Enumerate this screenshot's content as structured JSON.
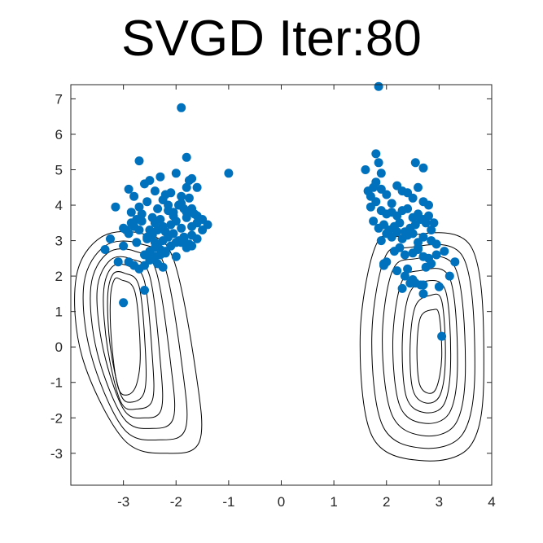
{
  "chart_data": {
    "type": "scatter",
    "title": "SVGD Iter:80",
    "xlabel": "",
    "ylabel": "",
    "xlim": [
      -4,
      4
    ],
    "ylim": [
      -3.9,
      7.4
    ],
    "xticks": [
      -3,
      -2,
      -1,
      0,
      1,
      2,
      3,
      4
    ],
    "yticks": [
      -3,
      -2,
      -1,
      0,
      1,
      2,
      3,
      4,
      5,
      6,
      7
    ],
    "grid": false,
    "legend": "none",
    "point_color": "#0072BD",
    "contour_color": "#000000",
    "series": [
      {
        "x": [
          -1.9,
          -1.0,
          1.85,
          -3.25,
          -3.15,
          -3.1,
          -2.6,
          -3.0,
          -2.7,
          -2.5,
          -2.3,
          -2.1,
          -1.8,
          -1.6,
          -1.4,
          -2.9,
          -2.8,
          -2.6,
          -2.4,
          -2.2,
          -2.0,
          -1.9,
          -1.7,
          -1.5,
          -3.0,
          -2.85,
          -2.7,
          -2.55,
          -2.45,
          -2.35,
          -2.25,
          -2.15,
          -2.05,
          -1.95,
          -1.85,
          -1.75,
          -1.65,
          -2.9,
          -2.8,
          -2.65,
          -2.5,
          -2.4,
          -2.3,
          -2.2,
          -2.1,
          -2.0,
          -1.9,
          -1.8,
          -1.7,
          -1.6,
          -3.35,
          -3.0,
          -2.75,
          -2.55,
          -2.45,
          -2.35,
          -2.25,
          -2.15,
          -2.05,
          -1.95,
          -1.85,
          -1.75,
          -2.6,
          -2.5,
          -2.4,
          -2.3,
          -2.2,
          -2.1,
          -2.0,
          -1.9,
          -1.8,
          -2.45,
          -2.35,
          -2.25,
          -2.55,
          -2.45,
          -2.35,
          -2.25,
          -1.75,
          -1.8,
          -1.9,
          -2.15,
          -2.05,
          -2.65,
          -2.75,
          -2.85,
          -2.95,
          -1.7,
          -1.85,
          -2.0,
          -2.1,
          -2.2,
          -2.3,
          -2.4,
          -2.5,
          -2.6,
          -2.7,
          -2.8,
          -2.9,
          -1.8,
          -1.7,
          -1.6,
          -1.5,
          -1.6,
          -1.7,
          -2.7,
          -2.4,
          -2.5,
          1.8,
          1.85,
          1.6,
          1.9,
          2.55,
          2.7,
          1.95,
          1.65,
          1.7,
          1.75,
          1.8,
          1.9,
          2.0,
          2.1,
          2.2,
          2.3,
          2.4,
          2.5,
          2.6,
          2.7,
          2.8,
          1.7,
          1.8,
          1.9,
          2.0,
          2.1,
          2.2,
          2.3,
          2.4,
          2.5,
          2.6,
          2.7,
          2.8,
          2.9,
          1.75,
          1.85,
          1.95,
          2.05,
          2.15,
          2.25,
          2.35,
          2.45,
          2.55,
          2.65,
          2.75,
          2.85,
          1.9,
          2.0,
          2.1,
          2.2,
          2.3,
          2.4,
          2.5,
          2.6,
          2.7,
          2.85,
          2.95,
          2.15,
          2.25,
          2.35,
          2.5,
          2.6,
          2.7,
          2.8,
          2.95,
          3.1,
          3.2,
          3.3,
          2.4,
          2.55,
          2.7,
          2.85,
          2.35,
          2.5,
          2.65,
          2.3,
          2.7,
          3.0,
          3.05,
          2.0,
          1.95,
          2.2,
          2.6,
          2.45,
          2.75
        ],
        "y": [
          6.75,
          4.9,
          7.35,
          3.05,
          3.95,
          2.4,
          1.6,
          1.25,
          5.25,
          4.7,
          4.8,
          4.35,
          5.35,
          4.5,
          3.45,
          4.45,
          4.25,
          4.6,
          4.4,
          4.3,
          4.9,
          4.05,
          4.75,
          3.6,
          3.35,
          3.8,
          3.95,
          4.1,
          3.65,
          3.9,
          4.15,
          3.85,
          3.7,
          4.0,
          3.9,
          4.2,
          3.75,
          3.2,
          3.4,
          3.55,
          3.3,
          3.5,
          3.6,
          3.25,
          3.45,
          3.55,
          3.35,
          3.65,
          3.4,
          3.5,
          2.75,
          2.85,
          2.95,
          3.05,
          3.15,
          2.9,
          3.0,
          3.1,
          3.2,
          3.0,
          3.1,
          2.9,
          2.6,
          2.7,
          2.8,
          2.75,
          2.65,
          2.85,
          2.55,
          2.95,
          2.8,
          2.5,
          2.35,
          2.25,
          3.1,
          3.2,
          3.3,
          3.4,
          4.7,
          4.5,
          4.25,
          4.0,
          3.8,
          3.75,
          3.6,
          3.5,
          3.3,
          3.15,
          3.05,
          2.95,
          2.85,
          2.7,
          2.6,
          2.55,
          2.45,
          2.3,
          2.2,
          2.3,
          2.4,
          3.8,
          3.9,
          3.7,
          3.3,
          3.05,
          2.85,
          3.3,
          2.95,
          3.15,
          5.45,
          5.2,
          5.0,
          4.9,
          5.2,
          5.05,
          2.3,
          4.4,
          4.25,
          4.5,
          4.65,
          4.45,
          4.3,
          4.05,
          4.55,
          4.4,
          4.35,
          4.2,
          4.5,
          4.1,
          4.0,
          3.95,
          4.1,
          3.85,
          3.75,
          3.8,
          3.7,
          3.85,
          3.9,
          3.65,
          3.75,
          3.6,
          3.7,
          3.5,
          3.55,
          3.35,
          3.45,
          3.3,
          3.4,
          3.5,
          3.25,
          3.35,
          3.45,
          3.6,
          3.5,
          3.3,
          3.0,
          3.2,
          3.1,
          3.25,
          3.05,
          3.15,
          3.2,
          2.95,
          3.1,
          3.0,
          2.9,
          2.7,
          2.8,
          2.6,
          2.65,
          2.75,
          2.55,
          2.5,
          2.6,
          2.7,
          2.0,
          2.4,
          2.2,
          1.8,
          1.5,
          2.35,
          2.0,
          1.9,
          1.75,
          1.65,
          1.75,
          1.7,
          0.3,
          2.4,
          2.35,
          2.15,
          2.8,
          1.8,
          2.25
        ]
      }
    ],
    "contours": [
      {
        "name": "left",
        "levels": [
          [
            [
              -3.18,
              1.88
            ],
            [
              -3.05,
              1.9
            ],
            [
              -2.78,
              1.55
            ],
            [
              -2.68,
              -0.15
            ],
            [
              -2.75,
              -1.05
            ],
            [
              -2.92,
              -1.35
            ],
            [
              -3.1,
              -1.15
            ],
            [
              -3.22,
              0.05
            ],
            [
              -3.25,
              1.3
            ],
            [
              -3.18,
              1.88
            ]
          ],
          [
            [
              -3.2,
              2.05
            ],
            [
              -2.98,
              2.08
            ],
            [
              -2.7,
              1.7
            ],
            [
              -2.58,
              -0.2
            ],
            [
              -2.6,
              -1.25
            ],
            [
              -2.82,
              -1.55
            ],
            [
              -3.05,
              -1.35
            ],
            [
              -3.25,
              0.0
            ],
            [
              -3.3,
              1.4
            ],
            [
              -3.2,
              2.05
            ]
          ],
          [
            [
              -3.22,
              2.25
            ],
            [
              -2.9,
              2.28
            ],
            [
              -2.6,
              1.85
            ],
            [
              -2.45,
              -0.3
            ],
            [
              -2.45,
              -1.5
            ],
            [
              -2.75,
              -1.75
            ],
            [
              -3.05,
              -1.55
            ],
            [
              -3.3,
              -0.05
            ],
            [
              -3.38,
              1.5
            ],
            [
              -3.22,
              2.25
            ]
          ],
          [
            [
              -3.25,
              2.45
            ],
            [
              -2.85,
              2.48
            ],
            [
              -2.5,
              2.0
            ],
            [
              -2.3,
              -0.4
            ],
            [
              -2.28,
              -1.75
            ],
            [
              -2.6,
              -2.0
            ],
            [
              -3.0,
              -1.75
            ],
            [
              -3.38,
              -0.1
            ],
            [
              -3.5,
              1.6
            ],
            [
              -3.25,
              2.45
            ]
          ],
          [
            [
              -3.3,
              2.65
            ],
            [
              -2.78,
              2.7
            ],
            [
              -2.38,
              2.15
            ],
            [
              -2.1,
              -0.5
            ],
            [
              -2.05,
              -2.0
            ],
            [
              -2.45,
              -2.3
            ],
            [
              -3.0,
              -2.0
            ],
            [
              -3.5,
              -0.15
            ],
            [
              -3.62,
              1.7
            ],
            [
              -3.3,
              2.65
            ]
          ],
          [
            [
              -3.35,
              2.85
            ],
            [
              -2.7,
              2.92
            ],
            [
              -2.22,
              2.3
            ],
            [
              -1.88,
              -0.6
            ],
            [
              -1.82,
              -2.3
            ],
            [
              -2.3,
              -2.62
            ],
            [
              -3.0,
              -2.3
            ],
            [
              -3.62,
              -0.2
            ],
            [
              -3.75,
              1.8
            ],
            [
              -3.35,
              2.85
            ]
          ],
          [
            [
              -3.42,
              3.1
            ],
            [
              -2.6,
              3.18
            ],
            [
              -2.05,
              2.48
            ],
            [
              -1.62,
              -0.75
            ],
            [
              -1.55,
              -2.65
            ],
            [
              -2.15,
              -3.0
            ],
            [
              -3.0,
              -2.6
            ],
            [
              -3.78,
              -0.3
            ],
            [
              -3.9,
              1.95
            ],
            [
              -3.42,
              3.1
            ]
          ]
        ]
      },
      {
        "name": "right",
        "levels": [
          [
            [
              2.88,
              1.05
            ],
            [
              3.0,
              0.9
            ],
            [
              3.05,
              -0.3
            ],
            [
              2.95,
              -1.15
            ],
            [
              2.78,
              -1.3
            ],
            [
              2.62,
              -1.0
            ],
            [
              2.58,
              0.0
            ],
            [
              2.65,
              0.85
            ],
            [
              2.88,
              1.05
            ]
          ],
          [
            [
              2.82,
              1.45
            ],
            [
              3.05,
              1.3
            ],
            [
              3.12,
              -0.3
            ],
            [
              3.02,
              -1.35
            ],
            [
              2.75,
              -1.58
            ],
            [
              2.5,
              -1.2
            ],
            [
              2.45,
              0.05
            ],
            [
              2.55,
              1.15
            ],
            [
              2.82,
              1.45
            ]
          ],
          [
            [
              2.72,
              1.85
            ],
            [
              3.12,
              1.6
            ],
            [
              3.22,
              -0.35
            ],
            [
              3.1,
              -1.6
            ],
            [
              2.72,
              -1.85
            ],
            [
              2.38,
              -1.42
            ],
            [
              2.3,
              0.1
            ],
            [
              2.42,
              1.45
            ],
            [
              2.72,
              1.85
            ]
          ],
          [
            [
              2.62,
              2.15
            ],
            [
              3.2,
              1.95
            ],
            [
              3.35,
              -0.4
            ],
            [
              3.2,
              -1.85
            ],
            [
              2.7,
              -2.15
            ],
            [
              2.25,
              -1.65
            ],
            [
              2.12,
              0.15
            ],
            [
              2.28,
              1.8
            ],
            [
              2.62,
              2.15
            ]
          ],
          [
            [
              2.5,
              2.48
            ],
            [
              3.3,
              2.25
            ],
            [
              3.5,
              -0.45
            ],
            [
              3.32,
              -2.15
            ],
            [
              2.68,
              -2.5
            ],
            [
              2.1,
              -1.9
            ],
            [
              1.92,
              0.2
            ],
            [
              2.1,
              2.1
            ],
            [
              2.5,
              2.48
            ]
          ],
          [
            [
              2.38,
              2.8
            ],
            [
              3.45,
              2.55
            ],
            [
              3.68,
              -0.55
            ],
            [
              3.45,
              -2.45
            ],
            [
              2.65,
              -2.85
            ],
            [
              1.92,
              -2.2
            ],
            [
              1.72,
              0.25
            ],
            [
              1.95,
              2.45
            ],
            [
              2.38,
              2.8
            ]
          ],
          [
            [
              2.25,
              3.12
            ],
            [
              3.6,
              2.85
            ],
            [
              3.85,
              -0.65
            ],
            [
              3.6,
              -2.78
            ],
            [
              2.62,
              -3.2
            ],
            [
              1.72,
              -2.5
            ],
            [
              1.5,
              0.3
            ],
            [
              1.78,
              2.8
            ],
            [
              2.25,
              3.12
            ]
          ]
        ]
      }
    ]
  }
}
